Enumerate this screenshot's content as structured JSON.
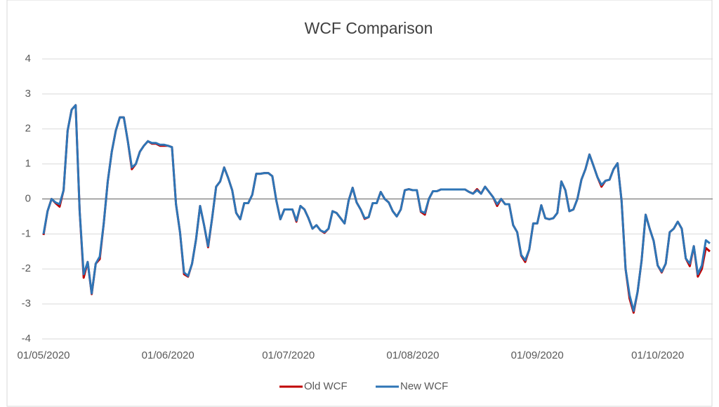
{
  "chart_data": {
    "type": "line",
    "title": "WCF Comparison",
    "x": [
      "01/05/2020",
      "02/05/2020",
      "03/05/2020",
      "04/05/2020",
      "05/05/2020",
      "06/05/2020",
      "07/05/2020",
      "08/05/2020",
      "09/05/2020",
      "10/05/2020",
      "11/05/2020",
      "12/05/2020",
      "13/05/2020",
      "14/05/2020",
      "15/05/2020",
      "16/05/2020",
      "17/05/2020",
      "18/05/2020",
      "19/05/2020",
      "20/05/2020",
      "21/05/2020",
      "22/05/2020",
      "23/05/2020",
      "24/05/2020",
      "25/05/2020",
      "26/05/2020",
      "27/05/2020",
      "28/05/2020",
      "29/05/2020",
      "30/05/2020",
      "31/05/2020",
      "01/06/2020",
      "02/06/2020",
      "03/06/2020",
      "04/06/2020",
      "05/06/2020",
      "06/06/2020",
      "07/06/2020",
      "08/06/2020",
      "09/06/2020",
      "10/06/2020",
      "11/06/2020",
      "12/06/2020",
      "13/06/2020",
      "14/06/2020",
      "15/06/2020",
      "16/06/2020",
      "17/06/2020",
      "18/06/2020",
      "19/06/2020",
      "20/06/2020",
      "21/06/2020",
      "22/06/2020",
      "23/06/2020",
      "24/06/2020",
      "25/06/2020",
      "26/06/2020",
      "27/06/2020",
      "28/06/2020",
      "29/06/2020",
      "30/06/2020",
      "01/07/2020",
      "02/07/2020",
      "03/07/2020",
      "04/07/2020",
      "05/07/2020",
      "06/07/2020",
      "07/07/2020",
      "08/07/2020",
      "09/07/2020",
      "10/07/2020",
      "11/07/2020",
      "12/07/2020",
      "13/07/2020",
      "14/07/2020",
      "15/07/2020",
      "16/07/2020",
      "17/07/2020",
      "18/07/2020",
      "19/07/2020",
      "20/07/2020",
      "21/07/2020",
      "22/07/2020",
      "23/07/2020",
      "24/07/2020",
      "25/07/2020",
      "26/07/2020",
      "27/07/2020",
      "28/07/2020",
      "29/07/2020",
      "30/07/2020",
      "31/07/2020",
      "01/08/2020",
      "02/08/2020",
      "03/08/2020",
      "04/08/2020",
      "05/08/2020",
      "06/08/2020",
      "07/08/2020",
      "08/08/2020",
      "09/08/2020",
      "10/08/2020",
      "11/08/2020",
      "12/08/2020",
      "13/08/2020",
      "14/08/2020",
      "15/08/2020",
      "16/08/2020",
      "17/08/2020",
      "18/08/2020",
      "19/08/2020",
      "20/08/2020",
      "21/08/2020",
      "22/08/2020",
      "23/08/2020",
      "24/08/2020",
      "25/08/2020",
      "26/08/2020",
      "27/08/2020",
      "28/08/2020",
      "29/08/2020",
      "30/08/2020",
      "31/08/2020",
      "01/09/2020",
      "02/09/2020",
      "03/09/2020",
      "04/09/2020",
      "05/09/2020",
      "06/09/2020",
      "07/09/2020",
      "08/09/2020",
      "09/09/2020",
      "10/09/2020",
      "11/09/2020",
      "12/09/2020",
      "13/09/2020",
      "14/09/2020",
      "15/09/2020",
      "16/09/2020",
      "17/09/2020",
      "18/09/2020",
      "19/09/2020",
      "20/09/2020",
      "21/09/2020",
      "22/09/2020",
      "23/09/2020",
      "24/09/2020",
      "25/09/2020",
      "26/09/2020",
      "27/09/2020",
      "28/09/2020",
      "29/09/2020",
      "30/09/2020",
      "01/10/2020",
      "02/10/2020",
      "03/10/2020",
      "04/10/2020",
      "05/10/2020",
      "06/10/2020",
      "07/10/2020",
      "08/10/2020",
      "09/10/2020",
      "10/10/2020",
      "11/10/2020",
      "12/10/2020",
      "13/10/2020",
      "14/10/2020"
    ],
    "series": [
      {
        "name": "Old WCF",
        "color": "#c00000",
        "values": [
          -1.03,
          -0.35,
          0.0,
          -0.12,
          -0.22,
          0.25,
          1.95,
          2.55,
          2.68,
          -0.35,
          -2.25,
          -1.8,
          -2.72,
          -1.85,
          -1.72,
          -0.7,
          0.5,
          1.35,
          1.95,
          2.33,
          2.33,
          1.65,
          0.85,
          1.0,
          1.35,
          1.52,
          1.65,
          1.58,
          1.58,
          1.52,
          1.52,
          1.52,
          1.48,
          -0.15,
          -0.95,
          -2.15,
          -2.22,
          -1.85,
          -1.15,
          -0.2,
          -0.75,
          -1.38,
          -0.55,
          0.35,
          0.5,
          0.9,
          0.6,
          0.25,
          -0.4,
          -0.58,
          -0.12,
          -0.12,
          0.12,
          0.72,
          0.72,
          0.74,
          0.74,
          0.65,
          -0.05,
          -0.58,
          -0.3,
          -0.3,
          -0.3,
          -0.65,
          -0.2,
          -0.3,
          -0.55,
          -0.85,
          -0.75,
          -0.9,
          -0.97,
          -0.85,
          -0.35,
          -0.4,
          -0.55,
          -0.7,
          -0.05,
          0.32,
          -0.1,
          -0.3,
          -0.57,
          -0.52,
          -0.12,
          -0.12,
          0.2,
          0.0,
          -0.1,
          -0.35,
          -0.5,
          -0.3,
          0.25,
          0.28,
          0.25,
          0.25,
          -0.37,
          -0.45,
          0.0,
          0.22,
          0.22,
          0.27,
          0.27,
          0.27,
          0.27,
          0.27,
          0.27,
          0.27,
          0.2,
          0.15,
          0.28,
          0.15,
          0.35,
          0.2,
          0.05,
          -0.2,
          0.0,
          -0.15,
          -0.15,
          -0.75,
          -0.95,
          -1.62,
          -1.8,
          -1.45,
          -0.7,
          -0.7,
          -0.18,
          -0.55,
          -0.58,
          -0.55,
          -0.4,
          0.5,
          0.25,
          -0.35,
          -0.3,
          0.0,
          0.55,
          0.85,
          1.27,
          0.95,
          0.62,
          0.35,
          0.52,
          0.55,
          0.85,
          1.02,
          -0.05,
          -2.0,
          -2.85,
          -3.25,
          -2.65,
          -1.75,
          -0.45,
          -0.85,
          -1.2,
          -1.9,
          -2.1,
          -1.85,
          -0.95,
          -0.85,
          -0.65,
          -0.85,
          -1.7,
          -1.92,
          -1.35,
          -2.22,
          -2.0,
          -1.4,
          -1.5
        ]
      },
      {
        "name": "New WCF",
        "color": "#2e75b6",
        "values": [
          -1.0,
          -0.35,
          0.0,
          -0.1,
          -0.15,
          0.25,
          1.95,
          2.55,
          2.68,
          -0.35,
          -2.15,
          -1.8,
          -2.7,
          -1.85,
          -1.65,
          -0.7,
          0.5,
          1.35,
          1.95,
          2.33,
          2.33,
          1.65,
          0.9,
          1.0,
          1.35,
          1.52,
          1.65,
          1.6,
          1.6,
          1.55,
          1.55,
          1.52,
          1.48,
          -0.15,
          -0.95,
          -2.1,
          -2.2,
          -1.85,
          -1.15,
          -0.2,
          -0.75,
          -1.35,
          -0.55,
          0.35,
          0.5,
          0.9,
          0.6,
          0.25,
          -0.4,
          -0.58,
          -0.12,
          -0.12,
          0.12,
          0.72,
          0.72,
          0.74,
          0.74,
          0.65,
          -0.05,
          -0.58,
          -0.3,
          -0.3,
          -0.3,
          -0.62,
          -0.2,
          -0.3,
          -0.55,
          -0.85,
          -0.75,
          -0.9,
          -0.95,
          -0.85,
          -0.35,
          -0.4,
          -0.55,
          -0.7,
          -0.05,
          0.32,
          -0.1,
          -0.3,
          -0.55,
          -0.52,
          -0.12,
          -0.12,
          0.2,
          0.0,
          -0.1,
          -0.35,
          -0.5,
          -0.3,
          0.25,
          0.28,
          0.25,
          0.25,
          -0.35,
          -0.4,
          0.0,
          0.22,
          0.22,
          0.27,
          0.27,
          0.27,
          0.27,
          0.27,
          0.27,
          0.27,
          0.2,
          0.15,
          0.25,
          0.15,
          0.35,
          0.2,
          0.05,
          -0.15,
          0.0,
          -0.15,
          -0.15,
          -0.75,
          -0.95,
          -1.6,
          -1.75,
          -1.45,
          -0.7,
          -0.7,
          -0.18,
          -0.55,
          -0.58,
          -0.55,
          -0.4,
          0.5,
          0.25,
          -0.35,
          -0.3,
          0.0,
          0.55,
          0.85,
          1.27,
          0.95,
          0.62,
          0.4,
          0.52,
          0.55,
          0.85,
          1.02,
          -0.05,
          -2.0,
          -2.75,
          -3.2,
          -2.65,
          -1.75,
          -0.45,
          -0.85,
          -1.2,
          -1.9,
          -2.08,
          -1.85,
          -0.95,
          -0.85,
          -0.65,
          -0.85,
          -1.7,
          -1.85,
          -1.35,
          -2.15,
          -1.9,
          -1.18,
          -1.27
        ]
      }
    ],
    "xlim": [
      "01/05/2020",
      "14/10/2020"
    ],
    "xticks": [
      "01/05/2020",
      "01/06/2020",
      "01/07/2020",
      "01/08/2020",
      "01/09/2020",
      "01/10/2020"
    ],
    "ylim": [
      -4,
      4
    ],
    "yticks": [
      4,
      3,
      2,
      1,
      0,
      -1,
      -2,
      -3,
      -4
    ],
    "grid": true,
    "legend": "bottom"
  }
}
